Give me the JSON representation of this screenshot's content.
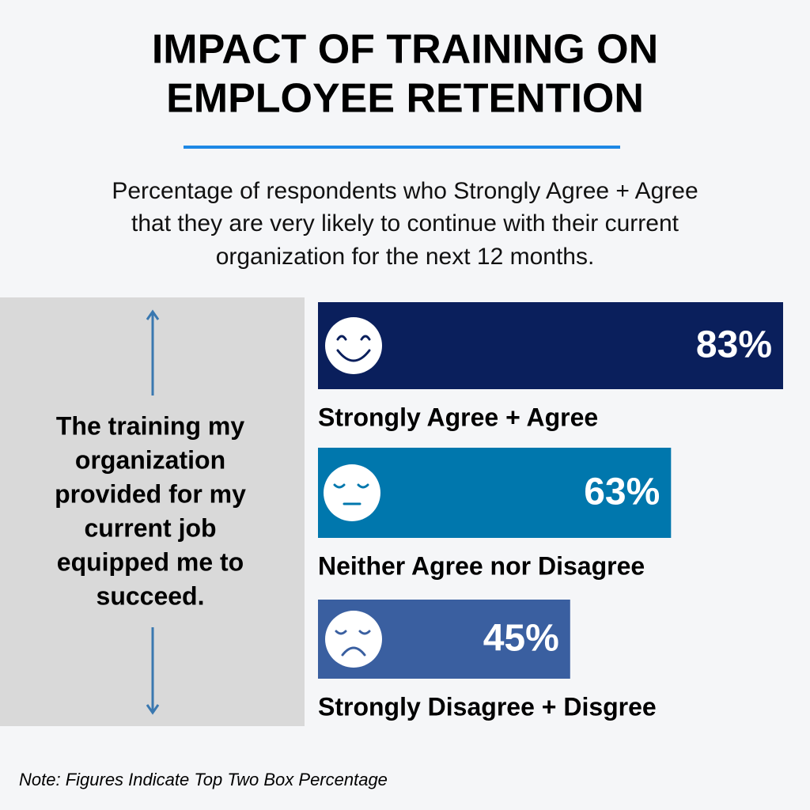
{
  "chart_data": {
    "type": "bar",
    "orientation": "horizontal",
    "title": [
      "IMPACT OF TRAINING ON",
      "EMPLOYEE RETENTION"
    ],
    "subtitle": [
      "Percentage of respondents who Strongly Agree + Agree",
      "that they are very likely to continue with their current",
      "organization for the next 12 months."
    ],
    "statement": [
      "The training my",
      "organization",
      "provided for my",
      "current job",
      "equipped me to",
      "succeed."
    ],
    "categories": [
      "Strongly Agree + Agree",
      "Neither Agree nor Disagree",
      "Strongly Disagree + Disgree"
    ],
    "values": [
      83,
      63,
      45
    ],
    "value_labels": [
      "83%",
      "63%",
      "45%"
    ],
    "colors": [
      "#0a1f5c",
      "#0077ad",
      "#3a5fa0"
    ],
    "note": "Note: Figures Indicate Top Two Box Percentage"
  }
}
